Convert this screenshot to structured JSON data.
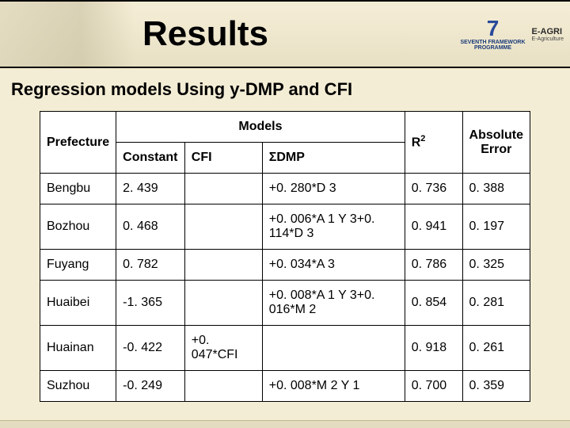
{
  "header": {
    "title": "Results",
    "logo_7fp_line1": "SEVENTH FRAMEWORK",
    "logo_7fp_line2": "PROGRAMME",
    "logo_eagri": "E-AGRI",
    "logo_eagri_sub": "E-Agriculture"
  },
  "subtitle": "Regression models Using y-DMP and CFI",
  "table": {
    "columns": {
      "prefecture": "Prefecture",
      "models": "Models",
      "constant": "Constant",
      "cfi": "CFI",
      "sdmp": "ΣDMP",
      "r2": "R",
      "r2_sup": "2",
      "abs_error": "Absolute Error"
    },
    "rows": [
      {
        "pref": "Bengbu",
        "const": "2. 439",
        "cfi": "",
        "sdmp": "+0. 280*D 3",
        "r2": "0. 736",
        "ae": "0. 388"
      },
      {
        "pref": "Bozhou",
        "const": "0. 468",
        "cfi": "",
        "sdmp": "+0. 006*A 1 Y 3+0. 114*D 3",
        "r2": "0. 941",
        "ae": "0. 197"
      },
      {
        "pref": "Fuyang",
        "const": "0. 782",
        "cfi": "",
        "sdmp": "+0. 034*A 3",
        "r2": "0. 786",
        "ae": "0. 325"
      },
      {
        "pref": "Huaibei",
        "const": "-1. 365",
        "cfi": "",
        "sdmp": "+0. 008*A 1 Y 3+0. 016*M 2",
        "r2": "0. 854",
        "ae": "0. 281"
      },
      {
        "pref": "Huainan",
        "const": "-0. 422",
        "cfi": "+0. 047*CFI",
        "sdmp": "",
        "r2": "0. 918",
        "ae": "0. 261"
      },
      {
        "pref": "Suzhou",
        "const": "-0. 249",
        "cfi": "",
        "sdmp": "+0. 008*M 2 Y 1",
        "r2": "0. 700",
        "ae": "0. 359"
      }
    ],
    "styling": {
      "border_color": "#000000",
      "background": "#ffffff",
      "header_fontsize": 16,
      "cell_fontsize": 16,
      "col_widths_pct": [
        15,
        14,
        16,
        30,
        12,
        13
      ]
    }
  },
  "colors": {
    "page_bg": "#f4edd5",
    "band_border": "#000000"
  }
}
